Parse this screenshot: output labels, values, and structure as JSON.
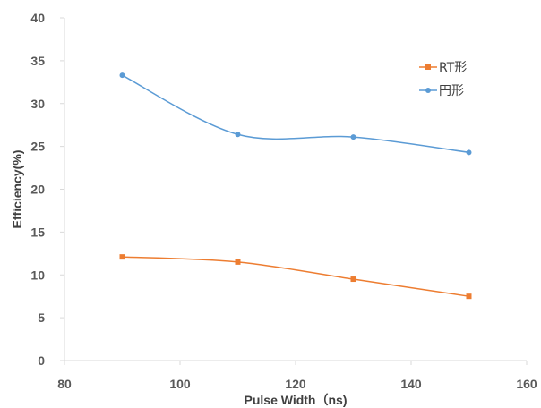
{
  "chart_data": {
    "type": "line",
    "title": "",
    "xlabel": "Pulse Width（ns)",
    "ylabel": "Efficiency(%)",
    "xlim": [
      80,
      160
    ],
    "ylim": [
      0,
      40
    ],
    "x_ticks": [
      80,
      100,
      120,
      140,
      160
    ],
    "y_ticks": [
      0,
      5,
      10,
      15,
      20,
      25,
      30,
      35,
      40
    ],
    "grid": false,
    "legend_position": "top-right",
    "smooth": true,
    "series": [
      {
        "name": "RT形",
        "color": "#ED7D31",
        "marker": "square",
        "x": [
          90,
          110,
          130,
          150
        ],
        "y": [
          12.1,
          11.5,
          9.5,
          7.5
        ]
      },
      {
        "name": "円形",
        "color": "#5B9BD5",
        "marker": "circle",
        "x": [
          90,
          110,
          130,
          150
        ],
        "y": [
          33.3,
          26.4,
          26.1,
          24.3
        ]
      }
    ]
  }
}
